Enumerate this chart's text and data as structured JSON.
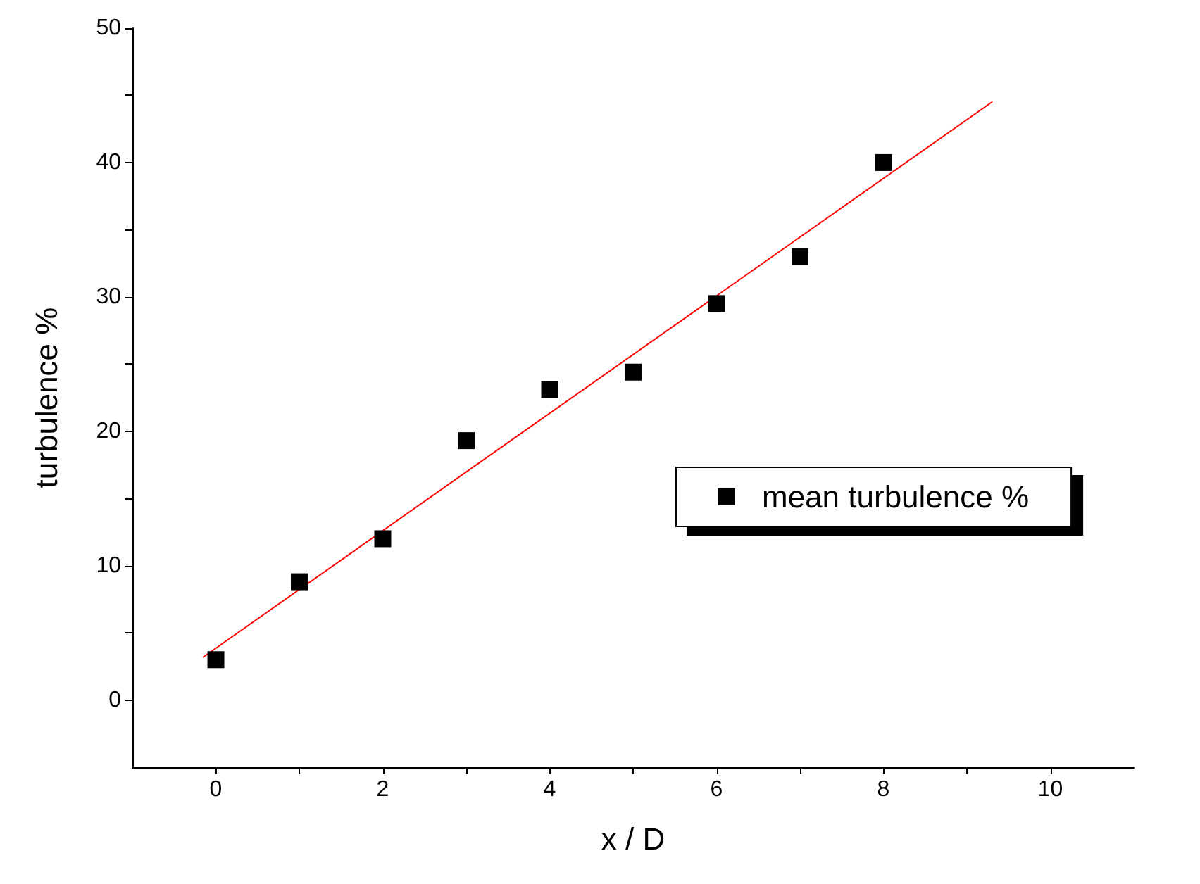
{
  "chart_data": {
    "type": "scatter",
    "xlabel": "x / D",
    "ylabel": "turbulence %",
    "series": [
      {
        "name": "mean turbulence %",
        "color": "#000000",
        "marker": "square",
        "x": [
          0,
          1,
          2,
          3,
          4,
          5,
          6,
          7,
          8
        ],
        "values": [
          3.0,
          8.8,
          12.0,
          19.3,
          23.1,
          24.4,
          29.5,
          33.0,
          40.0
        ]
      },
      {
        "type": "line",
        "color": "#ff0000",
        "marker": "none",
        "x": [
          -0.15,
          9.3
        ],
        "values": [
          3.2,
          44.5
        ]
      }
    ],
    "xlim": [
      -1,
      11
    ],
    "xticks": [
      0,
      2,
      4,
      6,
      8,
      10
    ],
    "ylim": [
      -5,
      50
    ],
    "yticks": [
      0,
      10,
      20,
      30,
      40,
      50
    ],
    "grid": false,
    "legend": "right"
  }
}
